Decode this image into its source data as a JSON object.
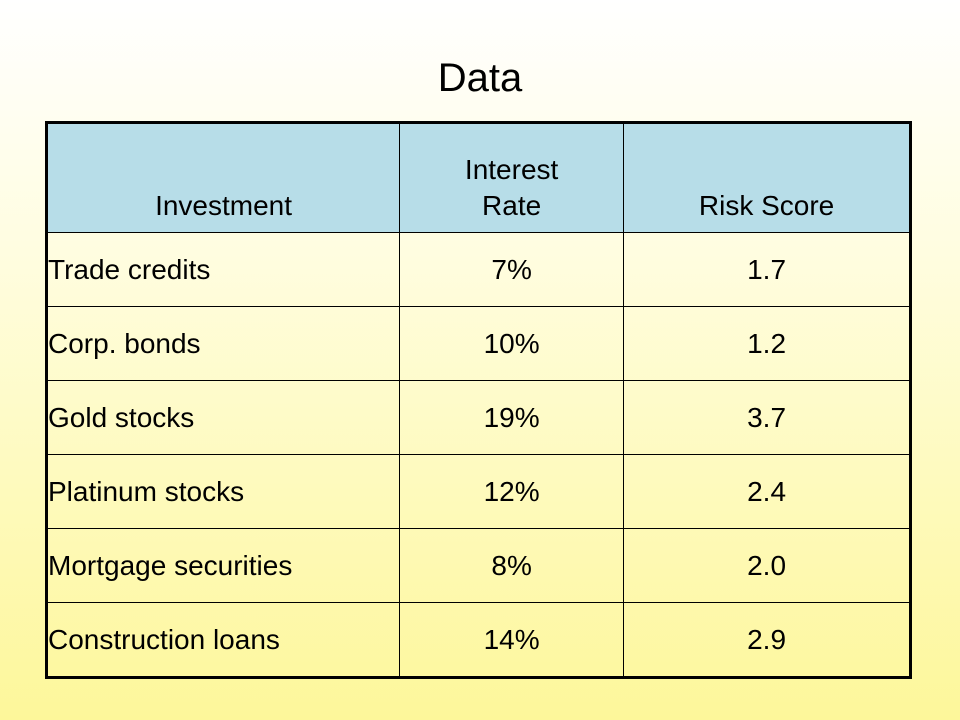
{
  "title": "Data",
  "table": {
    "headers": {
      "investment": "Investment",
      "rate_line1": "Interest",
      "rate_line2": "Rate",
      "risk": "Risk Score"
    },
    "rows": [
      {
        "investment": "Trade credits",
        "rate": "7%",
        "risk": "1.7"
      },
      {
        "investment": "Corp. bonds",
        "rate": "10%",
        "risk": "1.2"
      },
      {
        "investment": "Gold stocks",
        "rate": "19%",
        "risk": "3.7"
      },
      {
        "investment": "Platinum stocks",
        "rate": "12%",
        "risk": "2.4"
      },
      {
        "investment": "Mortgage securities",
        "rate": "8%",
        "risk": "2.0"
      },
      {
        "investment": "Construction loans",
        "rate": "14%",
        "risk": "2.9"
      }
    ]
  },
  "colors": {
    "header_fill": "#b7dde8",
    "background_top": "#ffffff",
    "background_bottom": "#fdf79a",
    "border": "#000000"
  }
}
